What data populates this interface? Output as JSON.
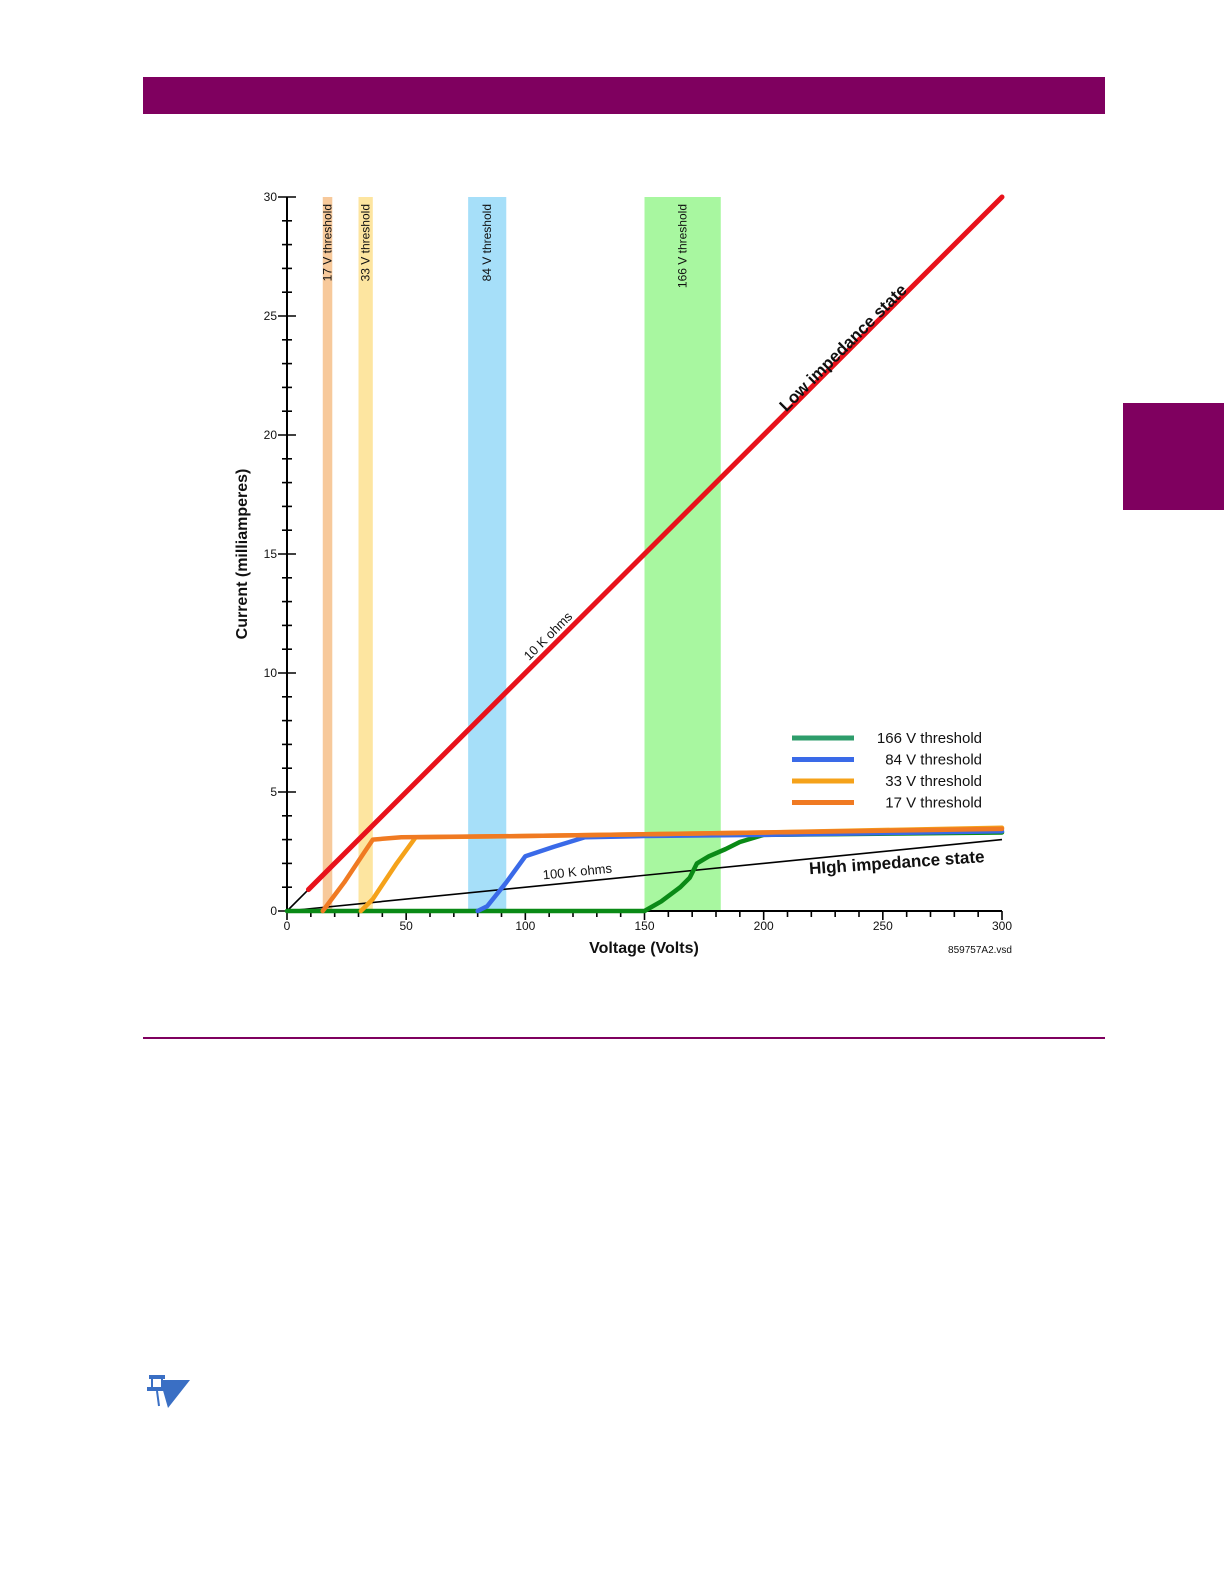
{
  "page": {
    "accent_color": "#7f005f",
    "note_icon": "note-pushpin-icon"
  },
  "chart_data": {
    "type": "line",
    "title": "",
    "xlabel": "Voltage (Volts)",
    "ylabel": "Current (milliamperes)",
    "xlim": [
      0,
      300
    ],
    "ylim": [
      0,
      30
    ],
    "x_ticks": [
      0,
      50,
      100,
      150,
      200,
      250,
      300
    ],
    "y_ticks": [
      0,
      5,
      10,
      15,
      20,
      25,
      30
    ],
    "grid": false,
    "legend_position": "lower-right",
    "file_label": "859757A2.vsd",
    "threshold_bands": [
      {
        "label": "17 V threshold",
        "x_range": [
          15,
          19
        ],
        "color": "#f7c99b"
      },
      {
        "label": "33 V threshold",
        "x_range": [
          30,
          36
        ],
        "color": "#fde5a0"
      },
      {
        "label": "84 V threshold",
        "x_range": [
          76,
          92
        ],
        "color": "#a6dff9"
      },
      {
        "label": "166 V threshold",
        "x_range": [
          150,
          182
        ],
        "color": "#a8f7a0"
      }
    ],
    "reference_lines": [
      {
        "label": "10 K ohms",
        "color": "#000000",
        "points": [
          [
            0,
            0
          ],
          [
            10,
            1
          ]
        ]
      },
      {
        "label": "100 K ohms",
        "color": "#000000",
        "points": [
          [
            0,
            0
          ],
          [
            300,
            3
          ]
        ]
      }
    ],
    "annotations": [
      {
        "text": "Low impedance state",
        "x": 235,
        "y": 23.5
      },
      {
        "text": "HIgh impedance state",
        "x": 256,
        "y": 1.8
      }
    ],
    "series": [
      {
        "name": "",
        "color": "#e8121b",
        "points": [
          [
            9,
            0.9
          ],
          [
            300,
            30
          ]
        ]
      },
      {
        "name": "166 V threshold",
        "legend_color": "#2e9d6b",
        "color": "#0a8a16",
        "points": [
          [
            0,
            0
          ],
          [
            150,
            0
          ],
          [
            157,
            0.4
          ],
          [
            165,
            1.0
          ],
          [
            169,
            1.4
          ],
          [
            172,
            2.0
          ],
          [
            177,
            2.3
          ],
          [
            184,
            2.6
          ],
          [
            190,
            2.9
          ],
          [
            200,
            3.2
          ],
          [
            300,
            3.3
          ]
        ]
      },
      {
        "name": "84 V threshold",
        "color": "#3a6ae8",
        "points": [
          [
            80,
            0
          ],
          [
            84,
            0.2
          ],
          [
            92,
            1.2
          ],
          [
            100,
            2.3
          ],
          [
            112,
            2.7
          ],
          [
            125,
            3.1
          ],
          [
            150,
            3.15
          ],
          [
            200,
            3.2
          ],
          [
            300,
            3.35
          ]
        ]
      },
      {
        "name": "33 V threshold",
        "color": "#f5a21a",
        "points": [
          [
            31,
            0
          ],
          [
            36,
            0.5
          ],
          [
            46,
            2.0
          ],
          [
            54,
            3.1
          ],
          [
            100,
            3.15
          ],
          [
            200,
            3.3
          ],
          [
            300,
            3.5
          ]
        ]
      },
      {
        "name": "17 V threshold",
        "color": "#f07a22",
        "points": [
          [
            15,
            0
          ],
          [
            24,
            1.2
          ],
          [
            32,
            2.4
          ],
          [
            36,
            3.0
          ],
          [
            48,
            3.1
          ],
          [
            100,
            3.15
          ],
          [
            200,
            3.3
          ],
          [
            300,
            3.45
          ]
        ]
      }
    ]
  }
}
